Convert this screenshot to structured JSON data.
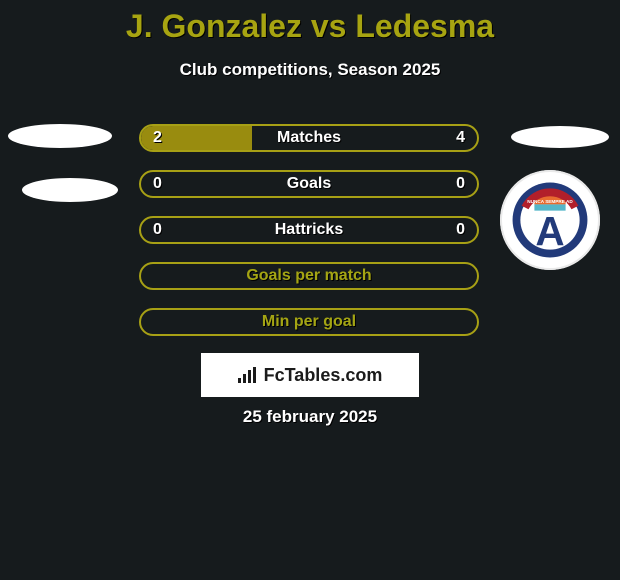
{
  "title": "J. Gonzalez vs Ledesma",
  "subtitle": "Club competitions, Season 2025",
  "date": "25 february 2025",
  "logo_text": "FcTables.com",
  "colors": {
    "accent": "#a7a411",
    "bar_border": "#a7a015",
    "bar_fill": "#998c0f",
    "background": "#161b1d",
    "white": "#ffffff"
  },
  "bars": [
    {
      "label": "Matches",
      "left": "2",
      "right": "4",
      "fill_pct": 33
    },
    {
      "label": "Goals",
      "left": "0",
      "right": "0",
      "fill_pct": 0
    },
    {
      "label": "Hattricks",
      "left": "0",
      "right": "0",
      "fill_pct": 0
    },
    {
      "label": "Goals per match",
      "left": "",
      "right": "",
      "fill_pct": 0
    },
    {
      "label": "Min per goal",
      "left": "",
      "right": "",
      "fill_pct": 0
    }
  ],
  "crest": {
    "outer_ring": "#223a7a",
    "inner_bg": "#ffffff",
    "letter": "A",
    "letter_color": "#223a7a",
    "arc_color": "#b21f2a",
    "arc_text": "NUNCA SEMPRE AD",
    "top_stripe_1": "#e86a2f",
    "top_stripe_2": "#54b6c9"
  }
}
